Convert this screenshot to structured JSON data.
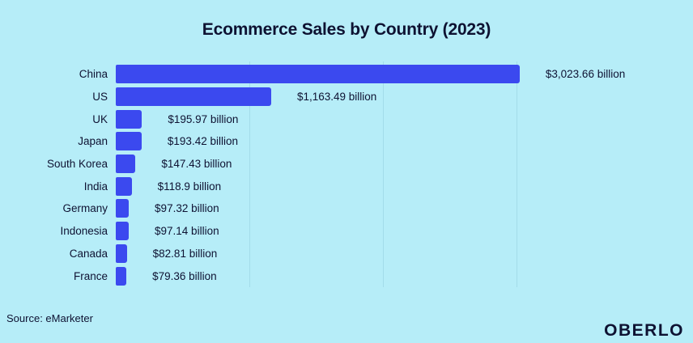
{
  "title": "Ecommerce Sales by Country (2023)",
  "source_note": "Source: eMarketer",
  "brand_logo": "OBERLO",
  "colors": {
    "background": "#b6edf8",
    "bar": "#3b49ef",
    "text": "#0e1232",
    "gridline": "#a3dcea"
  },
  "chart_data": {
    "type": "bar",
    "orientation": "horizontal",
    "title": "Ecommerce Sales by Country (2023)",
    "categories": [
      "China",
      "US",
      "UK",
      "Japan",
      "South Korea",
      "India",
      "Germany",
      "Indonesia",
      "Canada",
      "France"
    ],
    "values": [
      3023.66,
      1163.49,
      195.97,
      193.42,
      147.43,
      118.9,
      97.32,
      97.14,
      82.81,
      79.36
    ],
    "value_labels": [
      "$3,023.66 billion",
      "$1,163.49 billion",
      "$195.97 billion",
      "$193.42 billion",
      "$147.43 billion",
      "$118.9 billion",
      "$97.32 billion",
      "$97.14 billion",
      "$82.81 billion",
      "$79.36 billion"
    ],
    "unit": "USD billions",
    "xlabel": "",
    "ylabel": "",
    "xlim": [
      0,
      3000
    ],
    "x_gridlines": [
      1000,
      2000,
      3000
    ],
    "grid": true,
    "legend": false,
    "source": "Source: eMarketer"
  }
}
